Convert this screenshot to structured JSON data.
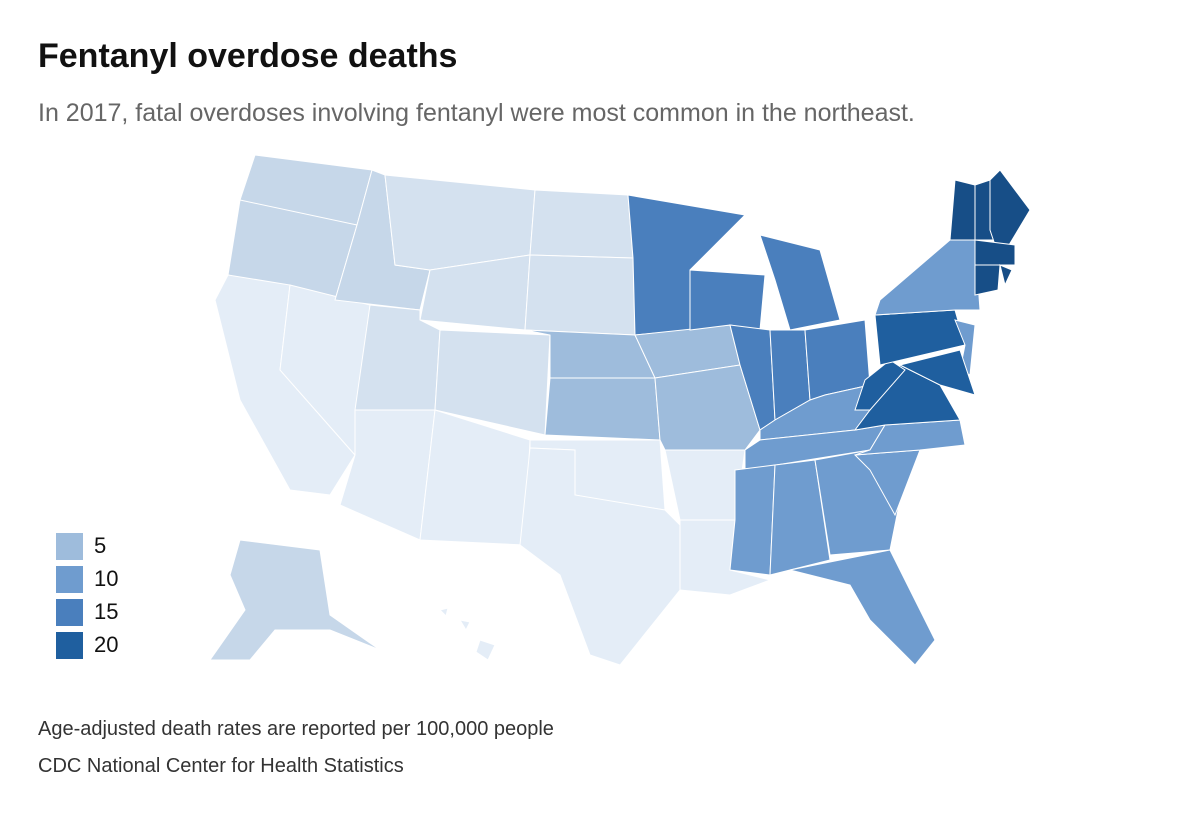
{
  "header": {
    "title": "Fentanyl overdose deaths",
    "subtitle": "In 2017, fatal overdoses involving fentanyl were most common in the northeast."
  },
  "legend": [
    {
      "value": 5,
      "color": "#9ebcdc"
    },
    {
      "value": 10,
      "color": "#6f9ccf"
    },
    {
      "value": 15,
      "color": "#4a7fbd"
    },
    {
      "value": 20,
      "color": "#1f5f9f"
    }
  ],
  "other_colors": [
    "#e4edf7",
    "#d4e1ef",
    "#c6d7e9",
    "#174e87"
  ],
  "notes": [
    "Age-adjusted death rates are reported per 100,000 people",
    "CDC National Center for Health Statistics"
  ]
}
